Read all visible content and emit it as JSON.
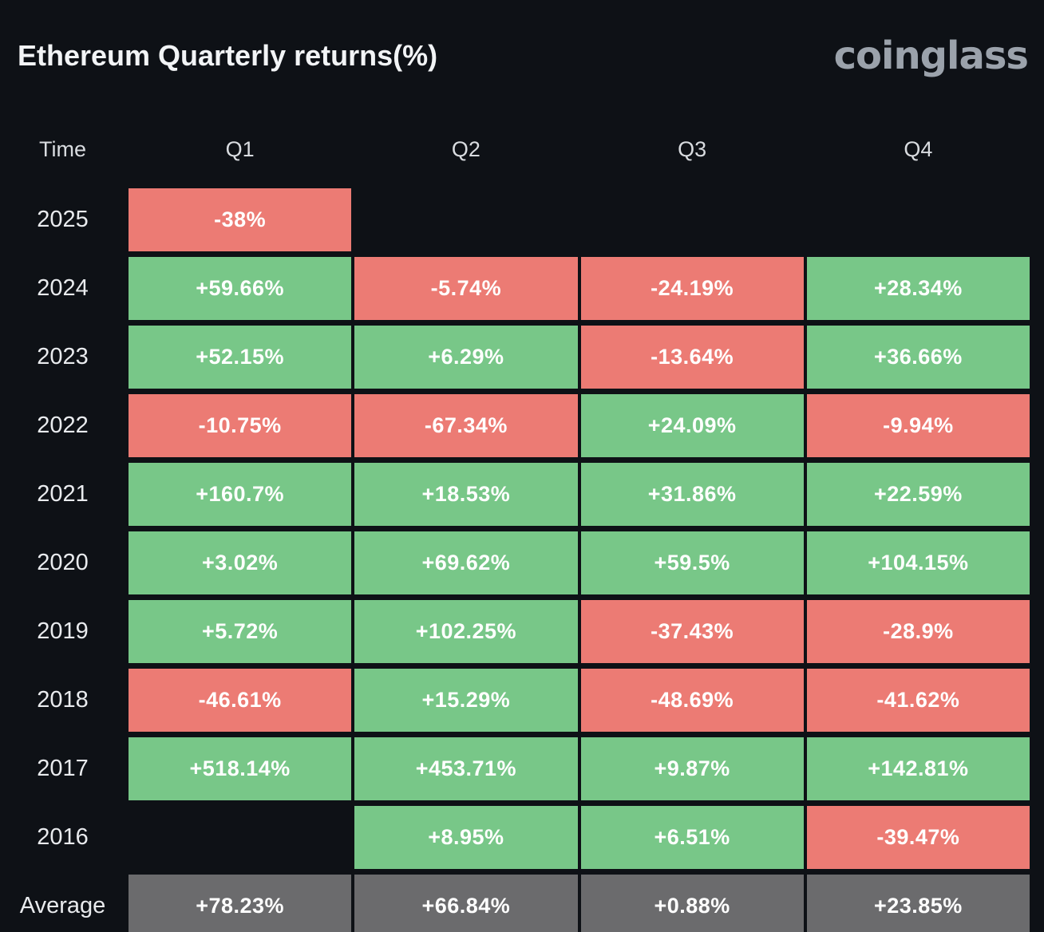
{
  "header": {
    "title": "Ethereum Quarterly returns(%)",
    "logo_text": "coinglass"
  },
  "colors": {
    "background": "#0e1116",
    "positive": "#78c788",
    "negative": "#ec7b74",
    "average": "#6b6b6d",
    "title_text": "#f2f4f6",
    "logo_text": "#9ba2ab",
    "header_text": "#d9dce0",
    "year_text": "#e9ebee",
    "cell_text": "#ffffff"
  },
  "chart_data": {
    "type": "table",
    "title": "Ethereum Quarterly returns(%)",
    "legend_position": "none",
    "columns": [
      "Time",
      "Q1",
      "Q2",
      "Q3",
      "Q4"
    ],
    "rows": [
      {
        "time": "2025",
        "values": [
          "-38%",
          null,
          null,
          null
        ]
      },
      {
        "time": "2024",
        "values": [
          "+59.66%",
          "-5.74%",
          "-24.19%",
          "+28.34%"
        ]
      },
      {
        "time": "2023",
        "values": [
          "+52.15%",
          "+6.29%",
          "-13.64%",
          "+36.66%"
        ]
      },
      {
        "time": "2022",
        "values": [
          "-10.75%",
          "-67.34%",
          "+24.09%",
          "-9.94%"
        ]
      },
      {
        "time": "2021",
        "values": [
          "+160.7%",
          "+18.53%",
          "+31.86%",
          "+22.59%"
        ]
      },
      {
        "time": "2020",
        "values": [
          "+3.02%",
          "+69.62%",
          "+59.5%",
          "+104.15%"
        ]
      },
      {
        "time": "2019",
        "values": [
          "+5.72%",
          "+102.25%",
          "-37.43%",
          "-28.9%"
        ]
      },
      {
        "time": "2018",
        "values": [
          "-46.61%",
          "+15.29%",
          "-48.69%",
          "-41.62%"
        ]
      },
      {
        "time": "2017",
        "values": [
          "+518.14%",
          "+453.71%",
          "+9.87%",
          "+142.81%"
        ]
      },
      {
        "time": "2016",
        "values": [
          null,
          "+8.95%",
          "+6.51%",
          "-39.47%"
        ]
      },
      {
        "time": "Average",
        "values": [
          "+78.23%",
          "+66.84%",
          "+0.88%",
          "+23.85%"
        ],
        "is_average": true
      }
    ]
  }
}
